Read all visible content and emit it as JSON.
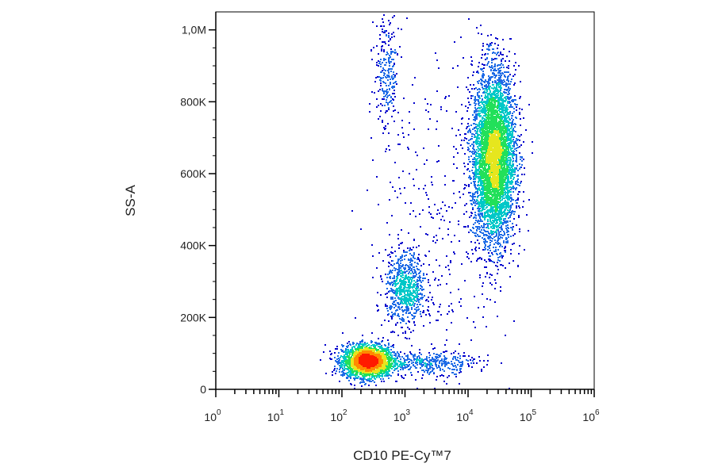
{
  "chart_data": {
    "type": "scatter",
    "subtype": "flow-cytometry-density-dot-plot",
    "title": "",
    "xlabel": "CD10 PE-Cy™7",
    "ylabel": "SS-A",
    "x_scale": "log",
    "xlim": [
      1,
      1000000
    ],
    "ylim": [
      0,
      1050000
    ],
    "x_ticks": [
      {
        "value": 1,
        "base": "10",
        "exp": "0"
      },
      {
        "value": 10,
        "base": "10",
        "exp": "1"
      },
      {
        "value": 100,
        "base": "10",
        "exp": "2"
      },
      {
        "value": 1000,
        "base": "10",
        "exp": "3"
      },
      {
        "value": 10000,
        "base": "10",
        "exp": "4"
      },
      {
        "value": 100000,
        "base": "10",
        "exp": "5"
      },
      {
        "value": 1000000,
        "base": "10",
        "exp": "6"
      }
    ],
    "y_ticks": [
      {
        "value": 0,
        "label": "0"
      },
      {
        "value": 200000,
        "label": "200K"
      },
      {
        "value": 400000,
        "label": "400K"
      },
      {
        "value": 600000,
        "label": "600K"
      },
      {
        "value": 800000,
        "label": "800K"
      },
      {
        "value": 1000000,
        "label": "1,0M"
      }
    ],
    "colormap": [
      "#0000cc",
      "#1e6be6",
      "#00c8c8",
      "#22e05a",
      "#e6e61e",
      "#ff8a00",
      "#ff1a00"
    ],
    "grid": false,
    "legend": "none",
    "populations": [
      {
        "center_x": 250,
        "center_y": 80000,
        "sd_log10_x": 0.2,
        "sd_y": 22000,
        "n": 2600
      },
      {
        "center_x": 1000,
        "center_y": 280000,
        "sd_log10_x": 0.16,
        "sd_y": 50000,
        "n": 750
      },
      {
        "center_x": 25000,
        "center_y": 650000,
        "sd_log10_x": 0.17,
        "sd_y": 120000,
        "n": 5000
      },
      {
        "center_x": 500,
        "center_y": 880000,
        "sd_log10_x": 0.1,
        "sd_y": 90000,
        "n": 260
      },
      {
        "center_x": 2500,
        "center_y": 75000,
        "sd_log10_x": 0.35,
        "sd_y": 15000,
        "n": 350
      },
      {
        "center_x": 3000,
        "center_y": 420000,
        "sd_log10_x": 0.55,
        "sd_y": 260000,
        "n": 380
      }
    ]
  }
}
